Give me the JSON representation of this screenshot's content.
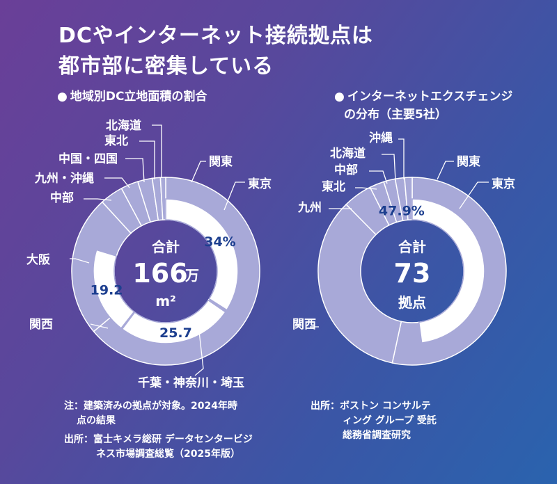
{
  "header": {
    "title_line1": "DCやインターネット接続拠点は",
    "title_line2": "都市部に密集している"
  },
  "left": {
    "bullet": "●",
    "subtitle": "地域別DC立地面積の割合",
    "center_label": "合計",
    "center_value": "166",
    "center_unit": "万",
    "center_unit2": "m²"
  },
  "right": {
    "bullet": "●",
    "subtitle_line1": "インターネットエクスチェンジ",
    "subtitle_line2": "の分布（主要5社）",
    "center_label": "合計",
    "center_value": "73",
    "center_unit": "拠点"
  },
  "notes": {
    "left_line1": "注：建築済みの拠点が対象。2024年時",
    "left_line2": "点の結果",
    "left_line3": "出所：富士キメラ総研 データセンタービジ",
    "left_line4": "ネス市場調査総覧（2025年版）",
    "right_line1": "出所：ボストン コンサルテ",
    "right_line2": "ィング グループ 受託",
    "right_line3": "総務省調査研究"
  },
  "colors": {
    "ring_light": "#a8a9d8",
    "white": "#ffffff",
    "value_text": "#1d3f8f",
    "line": "#ffffff"
  },
  "chart_data": [
    {
      "type": "pie",
      "title": "地域別DC立地面積の割合",
      "outer_ring": [
        {
          "name": "関東",
          "value": 63.9
        },
        {
          "name": "関西",
          "value": 24.3
        },
        {
          "name": "中部",
          "value": 4.0
        },
        {
          "name": "九州・沖縄",
          "value": 3.0
        },
        {
          "name": "中国・四国",
          "value": 2.5
        },
        {
          "name": "東北",
          "value": 1.4
        },
        {
          "name": "北海道",
          "value": 0.9
        }
      ],
      "inner_ring": [
        {
          "name": "東京",
          "value": 34,
          "label": "34%"
        },
        {
          "name": "千葉・神奈川・埼玉",
          "value": 25.7,
          "label": "25.7"
        },
        {
          "name": "大阪",
          "value": 19.2,
          "label": "19.2"
        }
      ],
      "total": "166万m²"
    },
    {
      "type": "pie",
      "title": "インターネットエクスチェンジの分布（主要5社）",
      "outer_ring": [
        {
          "name": "関東",
          "value": 53.4
        },
        {
          "name": "関西",
          "value": 34.2
        },
        {
          "name": "九州",
          "value": 5.0
        },
        {
          "name": "東北",
          "value": 2.5
        },
        {
          "name": "中部",
          "value": 2.0
        },
        {
          "name": "北海道",
          "value": 1.6
        },
        {
          "name": "沖縄",
          "value": 1.3
        }
      ],
      "inner_ring": [
        {
          "name": "東京",
          "value": 47.9,
          "label": "47.9%"
        }
      ],
      "total": "73拠点"
    }
  ]
}
